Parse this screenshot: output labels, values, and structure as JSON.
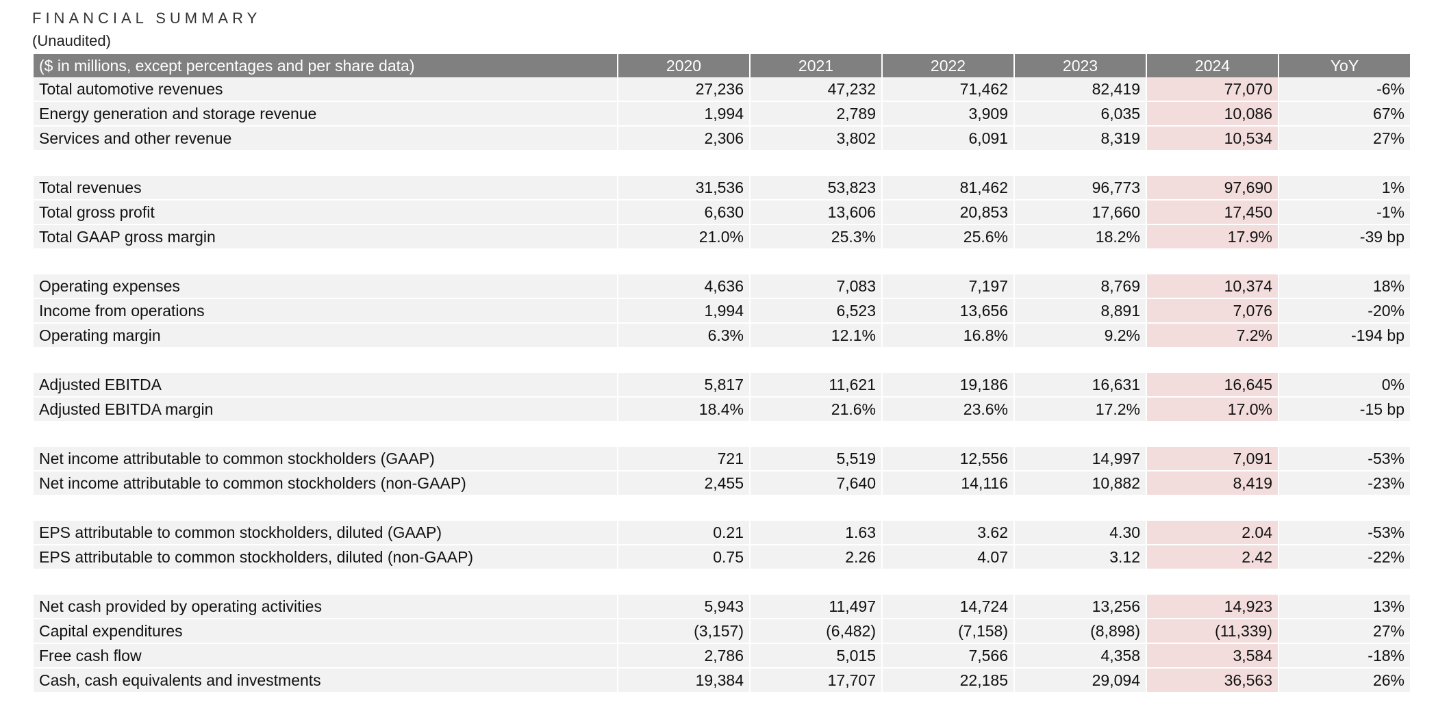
{
  "title": "FINANCIAL SUMMARY",
  "subtitle": "(Unaudited)",
  "header": {
    "label": "($ in millions, except percentages and per share data)",
    "years": [
      "2020",
      "2021",
      "2022",
      "2023",
      "2024"
    ],
    "yoy": "YoY"
  },
  "highlight_color": "#f2dcdc",
  "header_color": "#808080",
  "groups": [
    {
      "name": "revenue",
      "rows": [
        {
          "name": "total-automotive-revenues",
          "label": "Total automotive revenues",
          "values": [
            "27,236",
            "47,232",
            "71,462",
            "82,419",
            "77,070"
          ],
          "yoy": "-6%"
        },
        {
          "name": "energy-generation-and-storage-revenue",
          "label": "Energy generation and storage revenue",
          "values": [
            "1,994",
            "2,789",
            "3,909",
            "6,035",
            "10,086"
          ],
          "yoy": "67%"
        },
        {
          "name": "services-and-other-revenue",
          "label": "Services and other revenue",
          "values": [
            "2,306",
            "3,802",
            "6,091",
            "8,319",
            "10,534"
          ],
          "yoy": "27%"
        }
      ]
    },
    {
      "name": "totals",
      "rows": [
        {
          "name": "total-revenues",
          "label": "Total revenues",
          "values": [
            "31,536",
            "53,823",
            "81,462",
            "96,773",
            "97,690"
          ],
          "yoy": "1%"
        },
        {
          "name": "total-gross-profit",
          "label": "Total gross profit",
          "values": [
            "6,630",
            "13,606",
            "20,853",
            "17,660",
            "17,450"
          ],
          "yoy": "-1%"
        },
        {
          "name": "total-gaap-gross-margin",
          "label": "Total GAAP gross margin",
          "values": [
            "21.0%",
            "25.3%",
            "25.6%",
            "18.2%",
            "17.9%"
          ],
          "yoy": "-39 bp"
        }
      ]
    },
    {
      "name": "operations",
      "rows": [
        {
          "name": "operating-expenses",
          "label": "Operating expenses",
          "values": [
            "4,636",
            "7,083",
            "7,197",
            "8,769",
            "10,374"
          ],
          "yoy": "18%"
        },
        {
          "name": "income-from-operations",
          "label": "Income from operations",
          "values": [
            "1,994",
            "6,523",
            "13,656",
            "8,891",
            "7,076"
          ],
          "yoy": "-20%"
        },
        {
          "name": "operating-margin",
          "label": "Operating margin",
          "values": [
            "6.3%",
            "12.1%",
            "16.8%",
            "9.2%",
            "7.2%"
          ],
          "yoy": "-194 bp"
        }
      ]
    },
    {
      "name": "ebitda",
      "rows": [
        {
          "name": "adjusted-ebitda",
          "label": "Adjusted EBITDA",
          "values": [
            "5,817",
            "11,621",
            "19,186",
            "16,631",
            "16,645"
          ],
          "yoy": "0%"
        },
        {
          "name": "adjusted-ebitda-margin",
          "label": "Adjusted EBITDA margin",
          "values": [
            "18.4%",
            "21.6%",
            "23.6%",
            "17.2%",
            "17.0%"
          ],
          "yoy": "-15 bp"
        }
      ]
    },
    {
      "name": "net-income",
      "rows": [
        {
          "name": "net-income-gaap",
          "label": "Net income attributable to common stockholders (GAAP)",
          "values": [
            "721",
            "5,519",
            "12,556",
            "14,997",
            "7,091"
          ],
          "yoy": "-53%"
        },
        {
          "name": "net-income-non-gaap",
          "label": "Net income attributable to common stockholders (non-GAAP)",
          "values": [
            "2,455",
            "7,640",
            "14,116",
            "10,882",
            "8,419"
          ],
          "yoy": "-23%"
        }
      ]
    },
    {
      "name": "eps",
      "rows": [
        {
          "name": "eps-diluted-gaap",
          "label": "EPS attributable to common stockholders, diluted (GAAP)",
          "values": [
            "0.21",
            "1.63",
            "3.62",
            "4.30",
            "2.04"
          ],
          "yoy": "-53%"
        },
        {
          "name": "eps-diluted-non-gaap",
          "label": "EPS attributable to common stockholders, diluted (non-GAAP)",
          "values": [
            "0.75",
            "2.26",
            "4.07",
            "3.12",
            "2.42"
          ],
          "yoy": "-22%"
        }
      ]
    },
    {
      "name": "cash",
      "rows": [
        {
          "name": "net-cash-operating-activities",
          "label": "Net cash provided by operating activities",
          "values": [
            "5,943",
            "11,497",
            "14,724",
            "13,256",
            "14,923"
          ],
          "yoy": "13%"
        },
        {
          "name": "capital-expenditures",
          "label": "Capital expenditures",
          "values": [
            "(3,157)",
            "(6,482)",
            "(7,158)",
            "(8,898)",
            "(11,339)"
          ],
          "yoy": "27%"
        },
        {
          "name": "free-cash-flow",
          "label": "Free cash flow",
          "values": [
            "2,786",
            "5,015",
            "7,566",
            "4,358",
            "3,584"
          ],
          "yoy": "-18%"
        },
        {
          "name": "cash-equivalents-investments",
          "label": "Cash, cash equivalents and investments",
          "values": [
            "19,384",
            "17,707",
            "22,185",
            "29,094",
            "36,563"
          ],
          "yoy": "26%"
        }
      ]
    }
  ]
}
